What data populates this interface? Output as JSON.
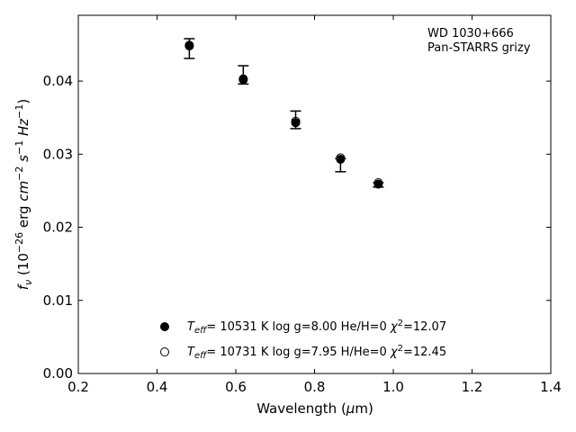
{
  "chart_data": {
    "type": "scatter",
    "xlabel": "Wavelength (μm)",
    "ylabel": "f_ν (10⁻²⁶ erg cm⁻² s⁻¹ Hz⁻¹)",
    "xlim": [
      0.2,
      1.4
    ],
    "ylim": [
      0.0,
      0.049
    ],
    "xticks": [
      0.2,
      0.4,
      0.6,
      0.8,
      1.0,
      1.2,
      1.4
    ],
    "xtick_labels": [
      "0.2",
      "0.4",
      "0.6",
      "0.8",
      "1.0",
      "1.2",
      "1.4"
    ],
    "yticks": [
      0.0,
      0.01,
      0.02,
      0.03,
      0.04
    ],
    "ytick_labels": [
      "0.00",
      "0.01",
      "0.02",
      "0.03",
      "0.04"
    ],
    "annotation": [
      "WD 1030+666",
      "Pan-STARRS grizy"
    ],
    "observed": {
      "x": [
        0.482,
        0.619,
        0.752,
        0.866,
        0.962
      ],
      "y": [
        0.0445,
        0.0409,
        0.0347,
        0.0288,
        0.0258
      ],
      "yerr_low": [
        0.0014,
        0.0013,
        0.0012,
        0.0012,
        0.0003
      ],
      "yerr_high": [
        0.0013,
        0.0012,
        0.0012,
        0.0006,
        0.0003
      ]
    },
    "series": [
      {
        "name": "T_eff= 10531 K  log g=8.00  He/H=0  χ²=12.07",
        "marker": "filled",
        "x": [
          0.482,
          0.619,
          0.752,
          0.866,
          0.962
        ],
        "y": [
          0.0448,
          0.0402,
          0.0343,
          0.0293,
          0.0259
        ]
      },
      {
        "name": "T_eff= 10731 K  log g=7.95  H/He=0  χ²=12.45",
        "marker": "open",
        "x": [
          0.482,
          0.619,
          0.752,
          0.866,
          0.962
        ],
        "y": [
          0.0449,
          0.0403,
          0.0345,
          0.0295,
          0.0261
        ]
      }
    ],
    "legend": [
      {
        "marker": "filled",
        "label": "T_eff= 10531 K  log g=8.00  He/H=0  χ²=12.07"
      },
      {
        "marker": "open",
        "label": "T_eff= 10731 K  log g=7.95  H/He=0  χ²=12.45"
      }
    ],
    "legend_position": "lower-center",
    "grid": false
  }
}
